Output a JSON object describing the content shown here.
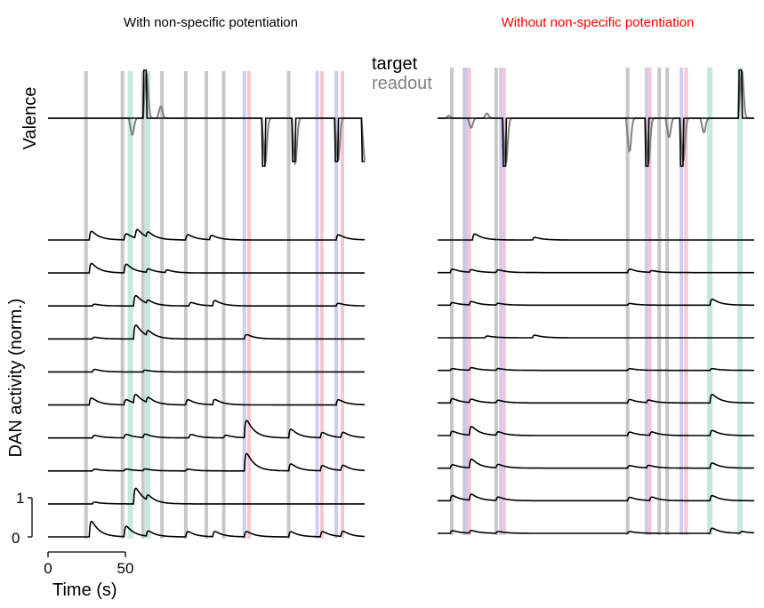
{
  "titles": {
    "left": "With non-specific potentiation",
    "right": "Without non-specific potentiation",
    "right_color": "#ff0000"
  },
  "legend": {
    "target": "target",
    "readout": "readout"
  },
  "ylabels": {
    "top": "Valence",
    "bottom": "DAN activity (norm.)"
  },
  "scalebar": {
    "top": "1",
    "bottom": "0"
  },
  "xaxis": {
    "label": "Time (s)",
    "ticks": [
      "0",
      "50"
    ]
  },
  "colors": {
    "stim_gray": "#c8c8c8",
    "stim_green": "#bfe8d8",
    "stim_blue": "#c8c8f0",
    "stim_pink": "#f4c0cc",
    "trace": "#000000",
    "readout": "#808080"
  },
  "chart_data": [
    {
      "type": "line",
      "panel": "left",
      "title": "With non-specific potentiation",
      "xlabel": "Time (s)",
      "ylabel": "Valence",
      "x_ticks": [
        0,
        50
      ],
      "xlim": [
        0,
        200
      ],
      "stimuli": [
        {
          "t": 24,
          "kind": "gray"
        },
        {
          "t": 47,
          "kind": "gray"
        },
        {
          "t": 52,
          "kind": "green"
        },
        {
          "t": 60,
          "kind": "gray"
        },
        {
          "t": 63,
          "kind": "green"
        },
        {
          "t": 72,
          "kind": "gray"
        },
        {
          "t": 87,
          "kind": "gray"
        },
        {
          "t": 100,
          "kind": "gray"
        },
        {
          "t": 111,
          "kind": "gray"
        },
        {
          "t": 124,
          "kind": "blue"
        },
        {
          "t": 127,
          "kind": "pink"
        },
        {
          "t": 152,
          "kind": "gray"
        },
        {
          "t": 170,
          "kind": "blue"
        },
        {
          "t": 173,
          "kind": "pink"
        },
        {
          "t": 182,
          "kind": "blue"
        },
        {
          "t": 186,
          "kind": "pink"
        }
      ],
      "valence_series": [
        {
          "name": "target",
          "events": [
            {
              "t": 61,
              "v": 1.0
            },
            {
              "t": 136,
              "v": -1.0
            },
            {
              "t": 155,
              "v": -0.9
            },
            {
              "t": 182,
              "v": -0.9
            },
            {
              "t": 199,
              "v": -0.9
            }
          ]
        },
        {
          "name": "readout",
          "events": [
            {
              "t": 52,
              "v": -0.35
            },
            {
              "t": 61,
              "v": 0.95
            },
            {
              "t": 70,
              "v": 0.25
            },
            {
              "t": 136,
              "v": -0.95
            },
            {
              "t": 155,
              "v": -0.95
            },
            {
              "t": 182,
              "v": -0.9
            },
            {
              "t": 199,
              "v": -0.9
            }
          ]
        }
      ],
      "dan_traces": [
        {
          "events": [
            {
              "t": 26,
              "a": 0.5
            },
            {
              "t": 48,
              "a": 0.35
            },
            {
              "t": 55,
              "a": 0.5
            },
            {
              "t": 62,
              "a": 0.3
            },
            {
              "t": 87,
              "a": 0.3
            },
            {
              "t": 102,
              "a": 0.25
            },
            {
              "t": 182,
              "a": 0.3
            }
          ]
        },
        {
          "events": [
            {
              "t": 26,
              "a": 0.55
            },
            {
              "t": 48,
              "a": 0.5
            },
            {
              "t": 62,
              "a": 0.2
            },
            {
              "t": 74,
              "a": 0.15
            }
          ]
        },
        {
          "events": [
            {
              "t": 28,
              "a": 0.1
            },
            {
              "t": 54,
              "a": 0.6
            },
            {
              "t": 62,
              "a": 0.2
            },
            {
              "t": 89,
              "a": 0.2
            },
            {
              "t": 104,
              "a": 0.3
            },
            {
              "t": 182,
              "a": 0.15
            }
          ]
        },
        {
          "events": [
            {
              "t": 28,
              "a": 0.1
            },
            {
              "t": 54,
              "a": 0.8
            },
            {
              "t": 62,
              "a": 0.3
            },
            {
              "t": 124,
              "a": 0.25
            }
          ]
        },
        {
          "events": [
            {
              "t": 28,
              "a": 0.15
            },
            {
              "t": 60,
              "a": 0.1
            }
          ]
        },
        {
          "events": [
            {
              "t": 26,
              "a": 0.4
            },
            {
              "t": 48,
              "a": 0.3
            },
            {
              "t": 54,
              "a": 0.5
            },
            {
              "t": 62,
              "a": 0.3
            },
            {
              "t": 87,
              "a": 0.3
            },
            {
              "t": 104,
              "a": 0.3
            },
            {
              "t": 182,
              "a": 0.3
            }
          ]
        },
        {
          "events": [
            {
              "t": 28,
              "a": 0.15
            },
            {
              "t": 48,
              "a": 0.2
            },
            {
              "t": 60,
              "a": 0.2
            },
            {
              "t": 89,
              "a": 0.2
            },
            {
              "t": 111,
              "a": 0.15
            },
            {
              "t": 124,
              "a": 1.0
            },
            {
              "t": 152,
              "a": 0.5
            },
            {
              "t": 172,
              "a": 0.3
            },
            {
              "t": 185,
              "a": 0.3
            }
          ]
        },
        {
          "events": [
            {
              "t": 28,
              "a": 0.1
            },
            {
              "t": 48,
              "a": 0.1
            },
            {
              "t": 60,
              "a": 0.1
            },
            {
              "t": 87,
              "a": 0.1
            },
            {
              "t": 124,
              "a": 1.0
            },
            {
              "t": 152,
              "a": 0.4
            },
            {
              "t": 172,
              "a": 0.3
            },
            {
              "t": 185,
              "a": 0.3
            }
          ]
        },
        {
          "events": [
            {
              "t": 28,
              "a": 0.1
            },
            {
              "t": 54,
              "a": 0.9
            },
            {
              "t": 62,
              "a": 0.3
            }
          ]
        },
        {
          "events": [
            {
              "t": 26,
              "a": 0.9
            },
            {
              "t": 48,
              "a": 0.6
            },
            {
              "t": 62,
              "a": 0.3
            },
            {
              "t": 87,
              "a": 0.3
            },
            {
              "t": 104,
              "a": 0.3
            },
            {
              "t": 124,
              "a": 0.3
            },
            {
              "t": 152,
              "a": 0.3
            },
            {
              "t": 172,
              "a": 0.3
            },
            {
              "t": 185,
              "a": 0.3
            }
          ]
        }
      ]
    },
    {
      "type": "line",
      "panel": "right",
      "title": "Without non-specific potentiation",
      "xlim": [
        0,
        200
      ],
      "stimuli": [
        {
          "t": 9,
          "kind": "gray"
        },
        {
          "t": 17,
          "kind": "gray"
        },
        {
          "t": 18,
          "kind": "blue"
        },
        {
          "t": 20,
          "kind": "pink"
        },
        {
          "t": 37,
          "kind": "gray"
        },
        {
          "t": 40,
          "kind": "blue"
        },
        {
          "t": 42,
          "kind": "pink"
        },
        {
          "t": 120,
          "kind": "gray"
        },
        {
          "t": 132,
          "kind": "blue"
        },
        {
          "t": 134,
          "kind": "pink"
        },
        {
          "t": 140,
          "kind": "gray"
        },
        {
          "t": 145,
          "kind": "gray"
        },
        {
          "t": 154,
          "kind": "blue"
        },
        {
          "t": 157,
          "kind": "pink"
        },
        {
          "t": 172,
          "kind": "green"
        },
        {
          "t": 191,
          "kind": "green"
        }
      ],
      "valence_series": [
        {
          "name": "target",
          "events": [
            {
              "t": 42,
              "v": -1.0
            },
            {
              "t": 132,
              "v": -1.0
            },
            {
              "t": 154,
              "v": -1.0
            },
            {
              "t": 191,
              "v": 1.0
            }
          ]
        },
        {
          "name": "readout",
          "events": [
            {
              "t": 6,
              "v": 0.05
            },
            {
              "t": 20,
              "v": -0.2
            },
            {
              "t": 30,
              "v": 0.1
            },
            {
              "t": 42,
              "v": -0.95
            },
            {
              "t": 120,
              "v": -0.7
            },
            {
              "t": 132,
              "v": -0.95
            },
            {
              "t": 145,
              "v": -0.4
            },
            {
              "t": 154,
              "v": -0.9
            },
            {
              "t": 167,
              "v": -0.3
            },
            {
              "t": 191,
              "v": 1.0
            }
          ]
        }
      ],
      "dan_traces": [
        {
          "events": [
            {
              "t": 22,
              "a": 0.35
            },
            {
              "t": 60,
              "a": 0.15
            }
          ]
        },
        {
          "events": [
            {
              "t": 8,
              "a": 0.2
            },
            {
              "t": 20,
              "a": 0.15
            },
            {
              "t": 37,
              "a": 0.15
            },
            {
              "t": 120,
              "a": 0.2
            },
            {
              "t": 134,
              "a": 0.1
            }
          ]
        },
        {
          "events": [
            {
              "t": 8,
              "a": 0.15
            },
            {
              "t": 20,
              "a": 0.2
            },
            {
              "t": 37,
              "a": 0.1
            },
            {
              "t": 120,
              "a": 0.1
            },
            {
              "t": 172,
              "a": 0.35
            }
          ]
        },
        {
          "events": [
            {
              "t": 30,
              "a": 0.1
            },
            {
              "t": 60,
              "a": 0.15
            }
          ]
        },
        {
          "events": [
            {
              "t": 8,
              "a": 0.1
            },
            {
              "t": 20,
              "a": 0.15
            },
            {
              "t": 37,
              "a": 0.1
            },
            {
              "t": 120,
              "a": 0.1
            },
            {
              "t": 172,
              "a": 0.1
            }
          ]
        },
        {
          "events": [
            {
              "t": 8,
              "a": 0.25
            },
            {
              "t": 20,
              "a": 0.2
            },
            {
              "t": 37,
              "a": 0.15
            },
            {
              "t": 120,
              "a": 0.2
            },
            {
              "t": 132,
              "a": 0.15
            },
            {
              "t": 172,
              "a": 0.5
            }
          ]
        },
        {
          "events": [
            {
              "t": 8,
              "a": 0.25
            },
            {
              "t": 20,
              "a": 0.5
            },
            {
              "t": 37,
              "a": 0.2
            },
            {
              "t": 120,
              "a": 0.2
            },
            {
              "t": 134,
              "a": 0.2
            },
            {
              "t": 172,
              "a": 0.3
            }
          ]
        },
        {
          "events": [
            {
              "t": 8,
              "a": 0.2
            },
            {
              "t": 20,
              "a": 0.5
            },
            {
              "t": 37,
              "a": 0.2
            },
            {
              "t": 120,
              "a": 0.15
            },
            {
              "t": 132,
              "a": 0.15
            },
            {
              "t": 172,
              "a": 0.3
            }
          ]
        },
        {
          "events": [
            {
              "t": 8,
              "a": 0.3
            },
            {
              "t": 20,
              "a": 0.35
            },
            {
              "t": 37,
              "a": 0.2
            },
            {
              "t": 120,
              "a": 0.2
            },
            {
              "t": 134,
              "a": 0.2
            },
            {
              "t": 172,
              "a": 0.3
            }
          ]
        },
        {
          "events": [
            {
              "t": 8,
              "a": 0.15
            },
            {
              "t": 20,
              "a": 0.15
            },
            {
              "t": 37,
              "a": 0.1
            },
            {
              "t": 120,
              "a": 0.1
            },
            {
              "t": 172,
              "a": 0.3
            },
            {
              "t": 191,
              "a": 0.1
            }
          ]
        }
      ]
    }
  ]
}
